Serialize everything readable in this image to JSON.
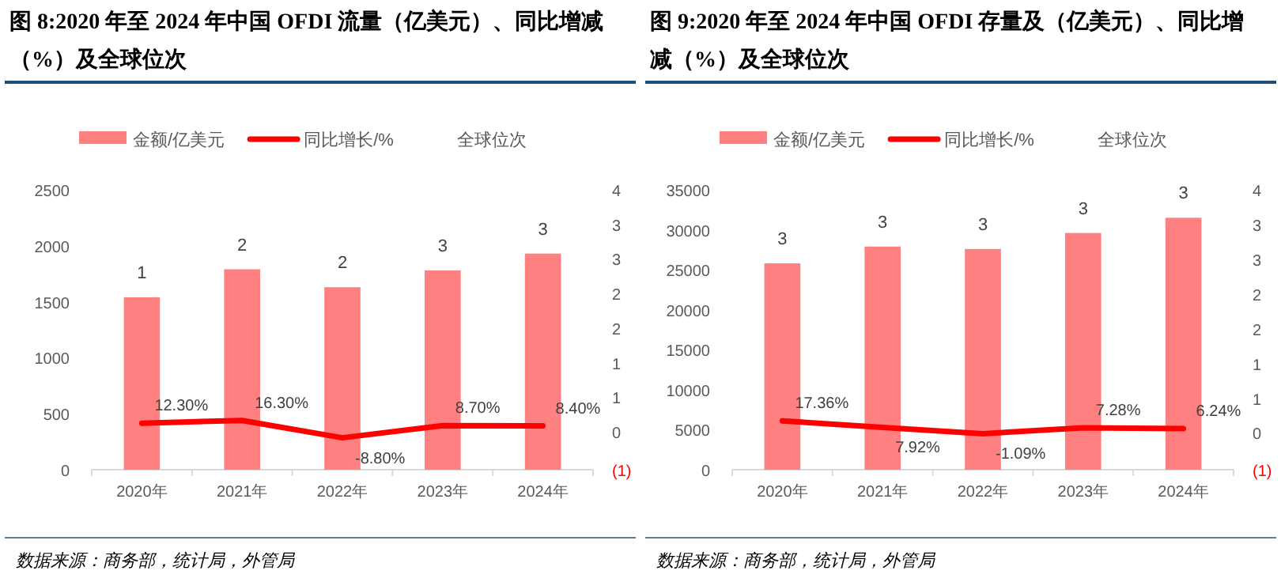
{
  "chart_data": [
    {
      "type": "bar",
      "title": "图 8:2020 年至 2024 年中国 OFDI 流量（亿美元）、同比增减（%）及全球位次",
      "categories": [
        "2020年",
        "2021年",
        "2022年",
        "2023年",
        "2024年"
      ],
      "series": [
        {
          "name": "金额/亿美元",
          "color": "#ff8080",
          "values": [
            1540,
            1790,
            1630,
            1780,
            1930
          ]
        },
        {
          "name": "同比增长/%",
          "type": "line",
          "axis": "y2",
          "color": "#ff0000",
          "values": [
            0.123,
            0.163,
            -0.088,
            0.087,
            0.084
          ],
          "value_labels": [
            "12.30%",
            "16.30%",
            "-8.80%",
            "8.70%",
            "8.40%"
          ]
        }
      ],
      "ylim": [
        0,
        2500
      ],
      "yticks": [
        0,
        500,
        1000,
        1500,
        2000,
        2500
      ],
      "y2lim": [
        -0.55,
        3.5
      ],
      "y2ticks": [
        {
          "value": -0.55,
          "label": "(1)"
        },
        0,
        {
          "value": 0.5,
          "label": "1"
        },
        {
          "value": 1,
          "label": "1"
        },
        {
          "value": 1.5,
          "label": "2"
        },
        {
          "value": 2,
          "label": "2"
        },
        {
          "value": 2.5,
          "label": "3"
        },
        {
          "value": 3,
          "label": "3"
        },
        {
          "value": 3.5,
          "label": "4"
        }
      ],
      "legend": "top",
      "annotations": [
        "全球位次",
        {
          "text": "1",
          "x": "2020年",
          "y": 1540
        },
        {
          "text": "2",
          "x": "2021年",
          "y": 1790
        },
        {
          "text": "2",
          "x": "2022年",
          "y": 1630
        },
        {
          "text": "3",
          "x": "2023年",
          "y": 1780
        },
        {
          "text": "3",
          "x": "2024年",
          "y": 1930
        },
        "数据来源：商务部，统计局，外管局"
      ]
    },
    {
      "type": "bar",
      "title": "图 9:2020 年至 2024 年中国 OFDI 存量及（亿美元）、同比增减（%）及全球位次",
      "categories": [
        "2020年",
        "2021年",
        "2022年",
        "2023年",
        "2024年"
      ],
      "series": [
        {
          "name": "金额/亿美元",
          "color": "#ff8080",
          "values": [
            25800,
            27900,
            27600,
            29600,
            31500
          ]
        },
        {
          "name": "同比增长/%",
          "type": "line",
          "axis": "y2",
          "color": "#ff0000",
          "values": [
            0.1736,
            0.0792,
            -0.0109,
            0.0728,
            0.0624
          ],
          "value_labels": [
            "17.36%",
            "7.92%",
            "-1.09%",
            "7.28%",
            "6.24%"
          ]
        }
      ],
      "ylim": [
        0,
        35000
      ],
      "yticks": [
        0,
        5000,
        10000,
        15000,
        20000,
        25000,
        30000,
        35000
      ],
      "y2lim": [
        -0.53,
        3.5
      ],
      "y2ticks": [
        {
          "value": -0.53,
          "label": "(1)"
        },
        0,
        {
          "value": 0.5,
          "label": "1"
        },
        {
          "value": 1,
          "label": "1"
        },
        {
          "value": 1.5,
          "label": "2"
        },
        {
          "value": 2,
          "label": "2"
        },
        {
          "value": 2.5,
          "label": "3"
        },
        {
          "value": 3,
          "label": "3"
        },
        {
          "value": 3.5,
          "label": "4"
        }
      ],
      "legend": "top",
      "annotations": [
        "全球位次",
        {
          "text": "3",
          "x": "2020年",
          "y": 25800
        },
        {
          "text": "3",
          "x": "2021年",
          "y": 27900
        },
        {
          "text": "3",
          "x": "2022年",
          "y": 27600
        },
        {
          "text": "3",
          "x": "2023年",
          "y": 29600
        },
        {
          "text": "3",
          "x": "2024年",
          "y": 31500
        },
        "数据来源：商务部，统计局，外管局"
      ]
    }
  ]
}
